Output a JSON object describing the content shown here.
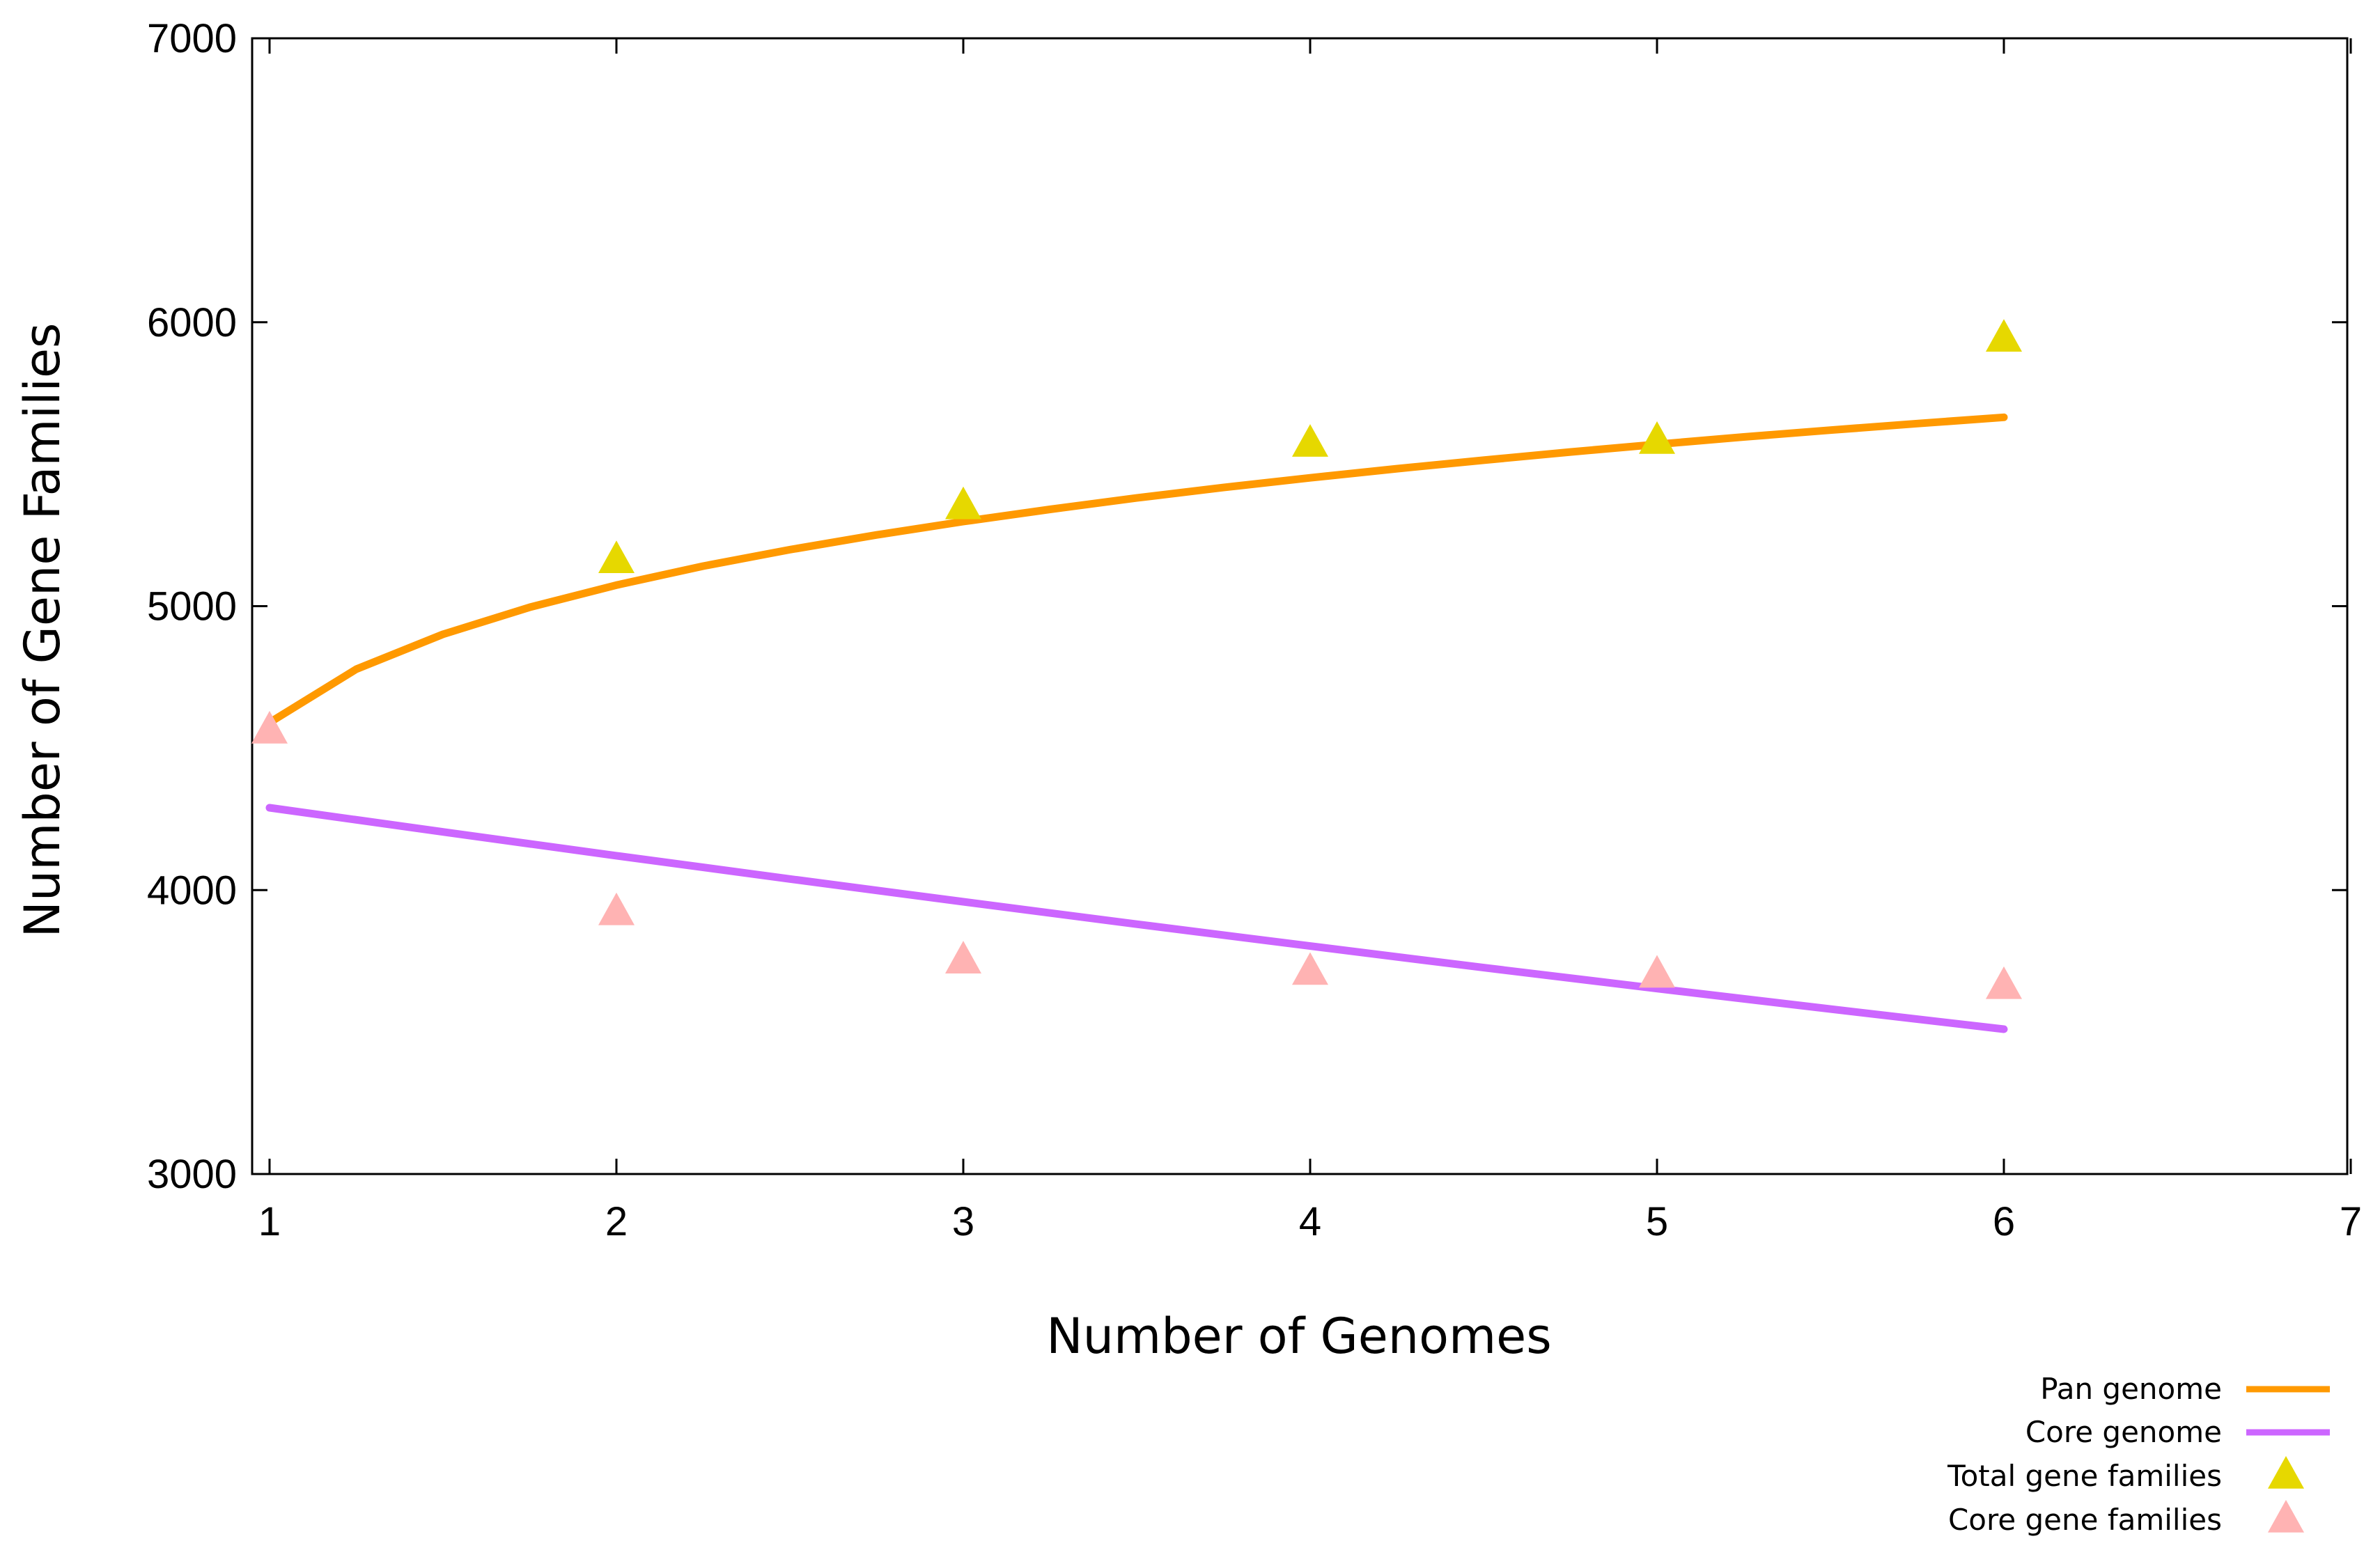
{
  "chart_data": {
    "type": "line",
    "xlabel": "Number of Genomes",
    "ylabel": "Number of Gene Families",
    "xlim": [
      1,
      7
    ],
    "ylim": [
      3000,
      7000
    ],
    "x_ticks": [
      "1",
      "2",
      "3",
      "4",
      "5",
      "6",
      "7"
    ],
    "y_ticks": [
      "3000",
      "4000",
      "5000",
      "6000",
      "7000"
    ],
    "grid": false,
    "legend_position": "bottom-right",
    "series": [
      {
        "name": "Pan genome",
        "style": "line",
        "color": "#FF9900",
        "x": [
          1,
          1.25,
          1.5,
          1.75,
          2,
          2.25,
          2.5,
          2.75,
          3,
          3.25,
          3.5,
          3.75,
          4,
          4.25,
          4.5,
          4.75,
          5,
          5.25,
          5.5,
          5.75,
          6
        ],
        "values": [
          4590,
          4778,
          4901,
          4996,
          5074,
          5141,
          5199,
          5251,
          5298,
          5341,
          5381,
          5418,
          5452,
          5484,
          5514,
          5543,
          5570,
          5596,
          5620,
          5643,
          5665
        ]
      },
      {
        "name": "Core genome",
        "style": "line",
        "color": "#CC66FF",
        "x": [
          1,
          1.5,
          2,
          2.5,
          3,
          3.5,
          4,
          4.5,
          5,
          5.5,
          6
        ],
        "values": [
          4290,
          4205,
          4121,
          4039,
          3959,
          3880,
          3803,
          3727,
          3653,
          3581,
          3510
        ]
      },
      {
        "name": "Total gene families",
        "style": "marker",
        "color": "#E6D800",
        "x": [
          2,
          3,
          4,
          5,
          6
        ],
        "values": [
          5160,
          5350,
          5570,
          5580,
          5940
        ]
      },
      {
        "name": "Core gene families",
        "style": "marker",
        "color": "#FFB3B3",
        "x": [
          1,
          2,
          3,
          4,
          5,
          6
        ],
        "values": [
          4560,
          3920,
          3750,
          3710,
          3700,
          3660
        ]
      }
    ]
  }
}
